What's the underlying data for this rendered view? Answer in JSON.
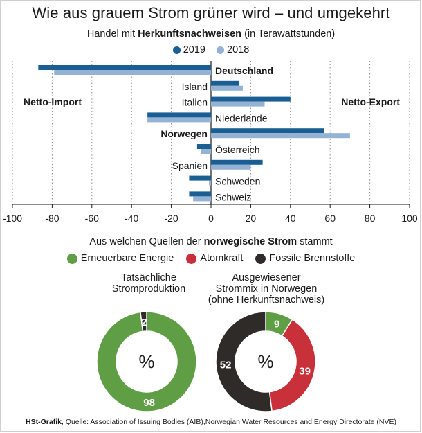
{
  "title": "Wie aus grauem Strom grüner wird – und umgekehrt",
  "subtitle": {
    "prefix": "Handel mit ",
    "bold": "Herkunftsnachweisen",
    "suffix": " (in Terawattstunden)"
  },
  "legend_top": [
    {
      "label": "2019",
      "color": "#1a5e94"
    },
    {
      "label": "2018",
      "color": "#93b2d4"
    }
  ],
  "chart_data": [
    {
      "type": "bar",
      "orientation": "horizontal",
      "categories": [
        "Deutschland",
        "Island",
        "Italien",
        "Niederlande",
        "Norwegen",
        "Österreich",
        "Spanien",
        "Schweden",
        "Schweiz"
      ],
      "bold_categories": [
        "Deutschland",
        "Norwegen"
      ],
      "series": [
        {
          "name": "2019",
          "color": "#1a5e94",
          "values": [
            -87,
            14,
            40,
            -32,
            57,
            -7,
            26,
            -11,
            -11
          ]
        },
        {
          "name": "2018",
          "color": "#93b2d4",
          "values": [
            -79,
            16,
            27,
            -32,
            70,
            -5,
            20,
            -1,
            -9
          ]
        }
      ],
      "side_labels": {
        "left": "Netto-Import",
        "right": "Netto-Export"
      },
      "xlim": [
        -100,
        100
      ],
      "xticks": [
        "-100",
        "-80",
        "-60",
        "-40",
        "-20",
        "0",
        "20",
        "40",
        "60",
        "80",
        "100"
      ],
      "grid": true
    },
    {
      "type": "pie",
      "variant": "donut",
      "title": "Tatsächliche Stromproduktion",
      "center_label": "%",
      "slices": [
        {
          "name": "Erneuerbare Energie",
          "value": 98,
          "color": "#5f9e45"
        },
        {
          "name": "Atomkraft",
          "value": 0,
          "color": "#c8303a"
        },
        {
          "name": "Fossile Brennstoffe",
          "value": 2,
          "color": "#2e2b29"
        }
      ]
    },
    {
      "type": "pie",
      "variant": "donut",
      "title": "Ausgewiesener Strommix in Norwegen (ohne Herkunftsnachweis)",
      "center_label": "%",
      "slices": [
        {
          "name": "Erneuerbare Energie",
          "value": 9,
          "color": "#5f9e45"
        },
        {
          "name": "Atomkraft",
          "value": 39,
          "color": "#c8303a"
        },
        {
          "name": "Fossile Brennstoffe",
          "value": 52,
          "color": "#2e2b29"
        }
      ]
    }
  ],
  "section2": {
    "prefix": "Aus welchen Quellen der ",
    "bold": "norwegische Strom",
    "suffix": " stammt"
  },
  "legend_sources": [
    {
      "label": "Erneuerbare Energie",
      "color": "#5f9e45"
    },
    {
      "label": "Atomkraft",
      "color": "#c8303a"
    },
    {
      "label": "Fossile Brennstoffe",
      "color": "#2e2b29"
    }
  ],
  "donut_titles": [
    [
      "Tatsächliche",
      "Stromproduktion"
    ],
    [
      "Ausgewiesener",
      "Strommix in Norwegen",
      "(ohne Herkunftsnachweis)"
    ]
  ],
  "footer": {
    "bold": "HSt-Grafik",
    "text": ", Quelle: Association of Issuing Bodies (AIB),Norwegian Water Resources and Energy Directorate (NVE)"
  }
}
